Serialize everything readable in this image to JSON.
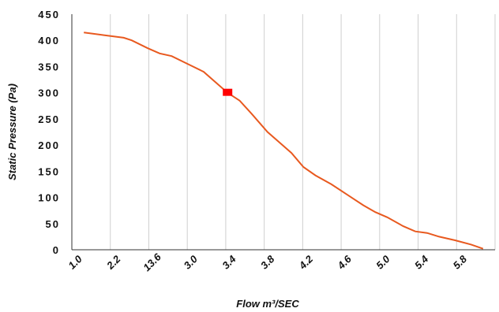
{
  "chart_data": {
    "type": "line",
    "title": "",
    "xlabel": "Flow m³/SEC",
    "ylabel": "Static Pressure (Pa)",
    "ylim": [
      0,
      450
    ],
    "y_ticks": [
      "0",
      "50",
      "100",
      "150",
      "200",
      "250",
      "300",
      "350",
      "400",
      "450"
    ],
    "x_tick_labels": [
      "1.0",
      "2.2",
      "13.6",
      "3.0",
      "3.4",
      "3.8",
      "4.2",
      "4.6",
      "5.0",
      "5.4",
      "5.8"
    ],
    "grid": "vertical",
    "series": [
      {
        "color": "#e8591f",
        "points": [
          [
            0.3,
            415
          ],
          [
            0.8,
            410
          ],
          [
            1.3,
            405
          ],
          [
            1.5,
            400
          ],
          [
            1.9,
            385
          ],
          [
            2.2,
            375
          ],
          [
            2.5,
            370
          ],
          [
            2.9,
            355
          ],
          [
            3.3,
            340
          ],
          [
            3.6,
            320
          ],
          [
            3.9,
            300
          ],
          [
            4.2,
            285
          ],
          [
            4.5,
            260
          ],
          [
            4.9,
            225
          ],
          [
            5.2,
            205
          ],
          [
            5.5,
            185
          ],
          [
            5.8,
            158
          ],
          [
            6.1,
            142
          ],
          [
            6.5,
            125
          ],
          [
            6.9,
            105
          ],
          [
            7.3,
            85
          ],
          [
            7.6,
            72
          ],
          [
            7.9,
            62
          ],
          [
            8.3,
            45
          ],
          [
            8.6,
            35
          ],
          [
            8.9,
            32
          ],
          [
            9.2,
            25
          ],
          [
            9.6,
            18
          ],
          [
            10.0,
            10
          ],
          [
            10.3,
            2
          ]
        ]
      }
    ],
    "marker": {
      "x": 3.9,
      "y": 300,
      "color": "#ff0000"
    }
  }
}
